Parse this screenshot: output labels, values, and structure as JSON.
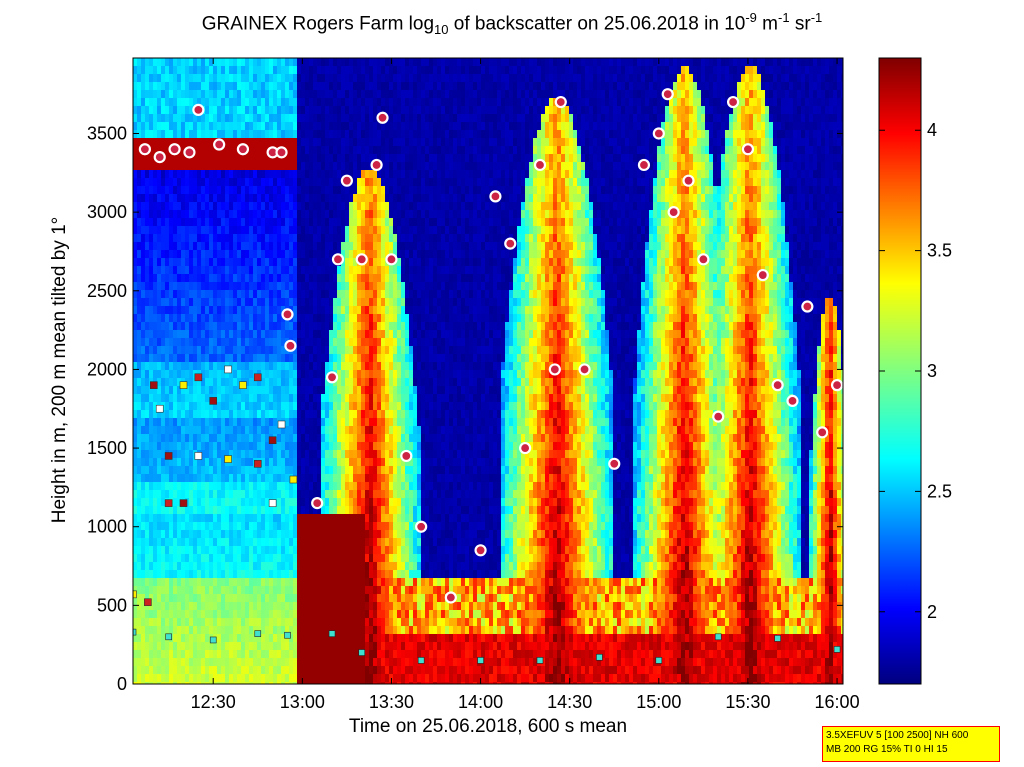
{
  "title": {
    "prefix": "GRAINEX Rogers Farm log",
    "sub": "10",
    "middle": " of backscatter on 25.06.2018 in 10",
    "sup1": "-9",
    "unit1": " m",
    "sup2": "-1",
    "unit2": " sr",
    "sup3": "-1"
  },
  "xlabel": "Time on 25.06.2018, 600 s mean",
  "ylabel": "Height in m, 200 m mean tilted by 1°",
  "note": {
    "line1": "3.5XEFUV 5 [100 2500] NH 600",
    "line2": "MB 200 RG 15% TI 0 HI 15"
  },
  "colors": {
    "low": "#00007f",
    "mid_low": "#0080ff",
    "mid": "#80ff80",
    "mid_high": "#ffbf00",
    "high": "#800000",
    "marker_cloud": "#cc2244",
    "marker_outline": "#ffffff",
    "marker_layer": "#40e0d0"
  },
  "chart_data": {
    "type": "heatmap",
    "x_axis": {
      "label": "Time on 25.06.2018, 600 s mean",
      "ticks": [
        "12:30",
        "13:00",
        "13:30",
        "14:00",
        "14:30",
        "15:00",
        "15:30",
        "16:00"
      ],
      "range": [
        "12:03",
        "16:02"
      ]
    },
    "y_axis": {
      "label": "Height in m, 200 m mean tilted by 1°",
      "ticks": [
        0,
        500,
        1000,
        1500,
        2000,
        2500,
        3000,
        3500
      ],
      "range": [
        0,
        3980
      ]
    },
    "colorbar": {
      "ticks": [
        2,
        2.5,
        3,
        3.5,
        4
      ],
      "range": [
        1.7,
        4.3
      ],
      "colormap": "jet"
    },
    "cloud_base_markers": [
      {
        "t": "13:05",
        "h": 1150
      },
      {
        "t": "13:10",
        "h": 1950
      },
      {
        "t": "13:12",
        "h": 2700
      },
      {
        "t": "13:15",
        "h": 3200
      },
      {
        "t": "13:20",
        "h": 2700
      },
      {
        "t": "13:25",
        "h": 3300
      },
      {
        "t": "13:27",
        "h": 3600
      },
      {
        "t": "13:30",
        "h": 2700
      },
      {
        "t": "13:35",
        "h": 1450
      },
      {
        "t": "13:40",
        "h": 1000
      },
      {
        "t": "13:50",
        "h": 550
      },
      {
        "t": "14:00",
        "h": 850
      },
      {
        "t": "14:05",
        "h": 3100
      },
      {
        "t": "14:10",
        "h": 2800
      },
      {
        "t": "14:15",
        "h": 1500
      },
      {
        "t": "14:20",
        "h": 3300
      },
      {
        "t": "14:25",
        "h": 2000
      },
      {
        "t": "14:27",
        "h": 3700
      },
      {
        "t": "14:35",
        "h": 2000
      },
      {
        "t": "14:45",
        "h": 1400
      },
      {
        "t": "14:55",
        "h": 3300
      },
      {
        "t": "15:00",
        "h": 3500
      },
      {
        "t": "15:03",
        "h": 3750
      },
      {
        "t": "15:05",
        "h": 3000
      },
      {
        "t": "15:10",
        "h": 3200
      },
      {
        "t": "15:15",
        "h": 2700
      },
      {
        "t": "15:20",
        "h": 1700
      },
      {
        "t": "15:25",
        "h": 3700
      },
      {
        "t": "15:30",
        "h": 3400
      },
      {
        "t": "15:35",
        "h": 2600
      },
      {
        "t": "15:40",
        "h": 1900
      },
      {
        "t": "15:45",
        "h": 1800
      },
      {
        "t": "15:50",
        "h": 2400
      },
      {
        "t": "15:55",
        "h": 1600
      },
      {
        "t": "16:00",
        "h": 1900
      }
    ],
    "early_cloud_markers": [
      {
        "t": "12:07",
        "h": 3400
      },
      {
        "t": "12:12",
        "h": 3350
      },
      {
        "t": "12:17",
        "h": 3400
      },
      {
        "t": "12:22",
        "h": 3380
      },
      {
        "t": "12:25",
        "h": 3650
      },
      {
        "t": "12:32",
        "h": 3430
      },
      {
        "t": "12:40",
        "h": 3400
      },
      {
        "t": "12:50",
        "h": 3380
      },
      {
        "t": "12:53",
        "h": 3380
      },
      {
        "t": "12:55",
        "h": 2350
      },
      {
        "t": "12:56",
        "h": 2150
      }
    ],
    "aerosol_layer_markers": [
      {
        "t": "12:03",
        "h": 330
      },
      {
        "t": "12:15",
        "h": 300
      },
      {
        "t": "12:30",
        "h": 280
      },
      {
        "t": "12:45",
        "h": 320
      },
      {
        "t": "12:55",
        "h": 310
      },
      {
        "t": "13:10",
        "h": 320
      },
      {
        "t": "13:20",
        "h": 200
      },
      {
        "t": "13:40",
        "h": 150
      },
      {
        "t": "14:00",
        "h": 150
      },
      {
        "t": "14:20",
        "h": 150
      },
      {
        "t": "14:40",
        "h": 170
      },
      {
        "t": "15:00",
        "h": 150
      },
      {
        "t": "15:20",
        "h": 300
      },
      {
        "t": "15:40",
        "h": 290
      },
      {
        "t": "16:00",
        "h": 220
      }
    ],
    "boundary_layer_markers": [
      {
        "t": "12:10",
        "h": 1900
      },
      {
        "t": "12:12",
        "h": 1750
      },
      {
        "t": "12:20",
        "h": 1900
      },
      {
        "t": "12:25",
        "h": 1950
      },
      {
        "t": "12:30",
        "h": 1800
      },
      {
        "t": "12:35",
        "h": 2000
      },
      {
        "t": "12:40",
        "h": 1900
      },
      {
        "t": "12:45",
        "h": 1950
      },
      {
        "t": "12:15",
        "h": 1450
      },
      {
        "t": "12:25",
        "h": 1450
      },
      {
        "t": "12:35",
        "h": 1430
      },
      {
        "t": "12:45",
        "h": 1400
      },
      {
        "t": "12:50",
        "h": 1550
      },
      {
        "t": "12:53",
        "h": 1650
      },
      {
        "t": "12:57",
        "h": 1300
      },
      {
        "t": "12:15",
        "h": 1150
      },
      {
        "t": "12:20",
        "h": 1150
      },
      {
        "t": "12:50",
        "h": 1150
      },
      {
        "t": "12:03",
        "h": 570
      },
      {
        "t": "12:08",
        "h": 520
      }
    ]
  }
}
